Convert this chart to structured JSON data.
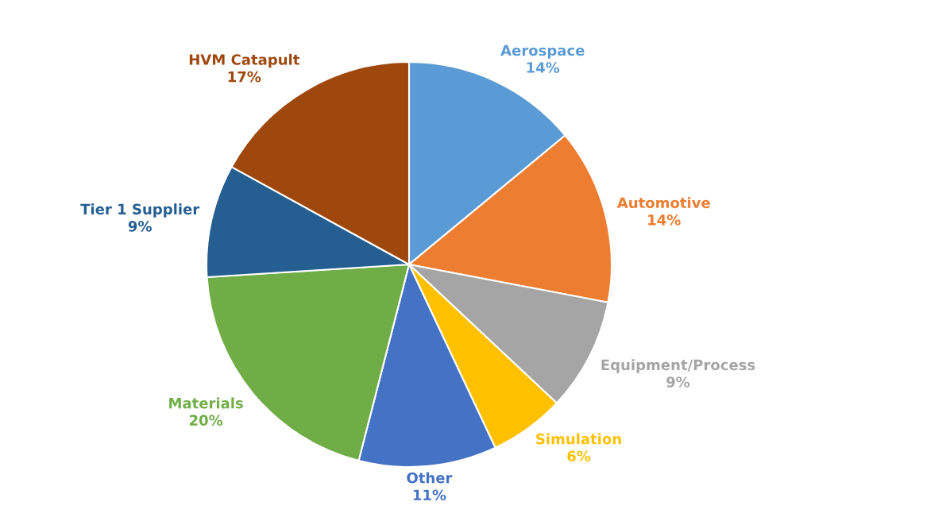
{
  "chart_data": {
    "type": "pie",
    "categories": [
      "Aerospace",
      "Automotive",
      "Equipment/Process",
      "Simulation",
      "Other",
      "Materials",
      "Tier 1 Supplier",
      "HVM Catapult"
    ],
    "values": [
      14,
      14,
      9,
      6,
      11,
      20,
      9,
      17
    ],
    "colors": [
      "#5b9bd5",
      "#ed7d31",
      "#a5a5a5",
      "#ffc000",
      "#4472c4",
      "#70ad47",
      "#255e91",
      "#9e480e"
    ],
    "value_labels": [
      "14%",
      "14%",
      "9%",
      "6%",
      "11%",
      "20%",
      "9%",
      "17%"
    ]
  }
}
